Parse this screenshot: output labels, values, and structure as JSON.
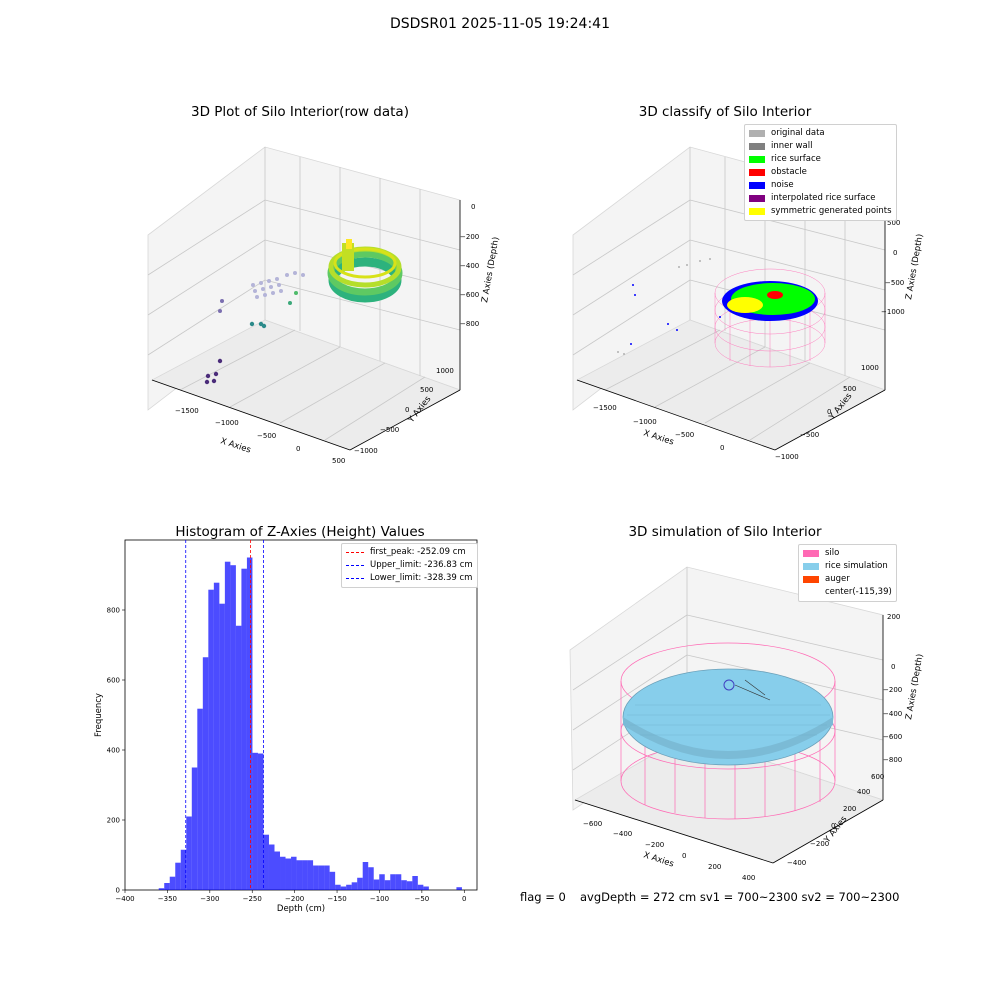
{
  "suptitle": "DSDSR01 2025-11-05 19:24:41",
  "panels": {
    "raw": {
      "title": "3D Plot of Silo Interior(row data)",
      "xlabel": "X Axies",
      "ylabel": "Y Axies",
      "zlabel": "Z Axies (Depth)",
      "xticks": [
        "−1500",
        "−1000",
        "−500",
        "0",
        "500"
      ],
      "yticks": [
        "−1000",
        "−500",
        "0",
        "500",
        "1000"
      ],
      "zticks": [
        "0",
        "−200",
        "−400",
        "−600",
        "−800"
      ]
    },
    "classify": {
      "title": "3D classify of Silo Interior",
      "xlabel": "X Axies",
      "ylabel": "Y Axies",
      "zlabel": "Z Axies (Depth)",
      "xticks": [
        "−1500",
        "−1000",
        "−500",
        "0"
      ],
      "yticks": [
        "−1000",
        "−500",
        "0",
        "500",
        "1000"
      ],
      "zticks": [
        "500",
        "0",
        "−500",
        "−1000"
      ],
      "legend": [
        {
          "label": "original data",
          "color": "#b0b0b0"
        },
        {
          "label": "inner wall",
          "color": "#808080"
        },
        {
          "label": "rice surface",
          "color": "#00ff00"
        },
        {
          "label": "obstacle",
          "color": "#ff0000"
        },
        {
          "label": "noise",
          "color": "#0000ff"
        },
        {
          "label": "interpolated rice surface",
          "color": "#800080"
        },
        {
          "label": "symmetric generated points",
          "color": "#ffff00"
        }
      ]
    },
    "simulation": {
      "title": "3D simulation of Silo Interior",
      "xlabel": "X Axies",
      "ylabel": "Y Axies",
      "zlabel": "Z Axies (Depth)",
      "xticks": [
        "−600",
        "−400",
        "−200",
        "0",
        "200",
        "400"
      ],
      "yticks": [
        "−400",
        "−200",
        "0",
        "200",
        "400",
        "600"
      ],
      "zticks": [
        "200",
        "0",
        "−200",
        "−400",
        "−600",
        "−800"
      ],
      "legend": [
        {
          "label": "silo",
          "color": "#ff69b4"
        },
        {
          "label": "rice simulation",
          "color": "#87ceeb"
        },
        {
          "label": "auger",
          "color": "#ff4500"
        },
        {
          "label": "center(-115,39)",
          "color": ""
        }
      ]
    }
  },
  "footer": {
    "flag": "flag = 0",
    "stats": "avgDepth = 272 cm  sv1 = 700~2300  sv2 = 700~2300"
  },
  "chart_data": {
    "type": "bar",
    "title": "Histogram of Z-Axies (Height) Values",
    "xlabel": "Depth (cm)",
    "ylabel": "Frequency",
    "xlim": [
      -400,
      15
    ],
    "ylim": [
      0,
      1000
    ],
    "xticks": [
      -400,
      -350,
      -300,
      -250,
      -200,
      -150,
      -100,
      -50,
      0
    ],
    "yticks": [
      0,
      200,
      400,
      600,
      800
    ],
    "bar_color": "#0000ff",
    "bin_width": 6.5,
    "bins": [
      {
        "x": -357,
        "count": 5
      },
      {
        "x": -350.5,
        "count": 20
      },
      {
        "x": -344,
        "count": 38
      },
      {
        "x": -337.5,
        "count": 78
      },
      {
        "x": -331,
        "count": 115
      },
      {
        "x": -324.5,
        "count": 210
      },
      {
        "x": -318,
        "count": 350
      },
      {
        "x": -311.5,
        "count": 518
      },
      {
        "x": -305,
        "count": 665
      },
      {
        "x": -298.5,
        "count": 858
      },
      {
        "x": -292,
        "count": 878
      },
      {
        "x": -285.5,
        "count": 818
      },
      {
        "x": -279,
        "count": 938
      },
      {
        "x": -272.5,
        "count": 928
      },
      {
        "x": -266,
        "count": 755
      },
      {
        "x": -259.5,
        "count": 918
      },
      {
        "x": -253,
        "count": 950
      },
      {
        "x": -246.5,
        "count": 392
      },
      {
        "x": -240,
        "count": 390
      },
      {
        "x": -233.5,
        "count": 158
      },
      {
        "x": -227,
        "count": 130
      },
      {
        "x": -220.5,
        "count": 110
      },
      {
        "x": -214,
        "count": 95
      },
      {
        "x": -207.5,
        "count": 90
      },
      {
        "x": -201,
        "count": 95
      },
      {
        "x": -194.5,
        "count": 85
      },
      {
        "x": -188,
        "count": 85
      },
      {
        "x": -181.5,
        "count": 85
      },
      {
        "x": -175,
        "count": 70
      },
      {
        "x": -168.5,
        "count": 70
      },
      {
        "x": -162,
        "count": 70
      },
      {
        "x": -155.5,
        "count": 52
      },
      {
        "x": -149,
        "count": 15
      },
      {
        "x": -142.5,
        "count": 10
      },
      {
        "x": -136,
        "count": 15
      },
      {
        "x": -129.5,
        "count": 22
      },
      {
        "x": -123,
        "count": 35
      },
      {
        "x": -116.5,
        "count": 80
      },
      {
        "x": -110,
        "count": 65
      },
      {
        "x": -103.5,
        "count": 30
      },
      {
        "x": -97,
        "count": 45
      },
      {
        "x": -90.5,
        "count": 28
      },
      {
        "x": -84,
        "count": 45
      },
      {
        "x": -77.5,
        "count": 45
      },
      {
        "x": -71,
        "count": 28
      },
      {
        "x": -64.5,
        "count": 25
      },
      {
        "x": -58,
        "count": 40
      },
      {
        "x": -51.5,
        "count": 15
      },
      {
        "x": -45,
        "count": 10
      },
      {
        "x": -6,
        "count": 8
      }
    ],
    "vlines": [
      {
        "name": "first_peak: -252.09 cm",
        "x": -252.09,
        "color": "#ff0000"
      },
      {
        "name": "Upper_limit: -236.83 cm",
        "x": -236.83,
        "color": "#0000ff"
      },
      {
        "name": "Lower_limit: -328.39 cm",
        "x": -328.39,
        "color": "#0000ff"
      }
    ],
    "legend_position": "top-right"
  }
}
